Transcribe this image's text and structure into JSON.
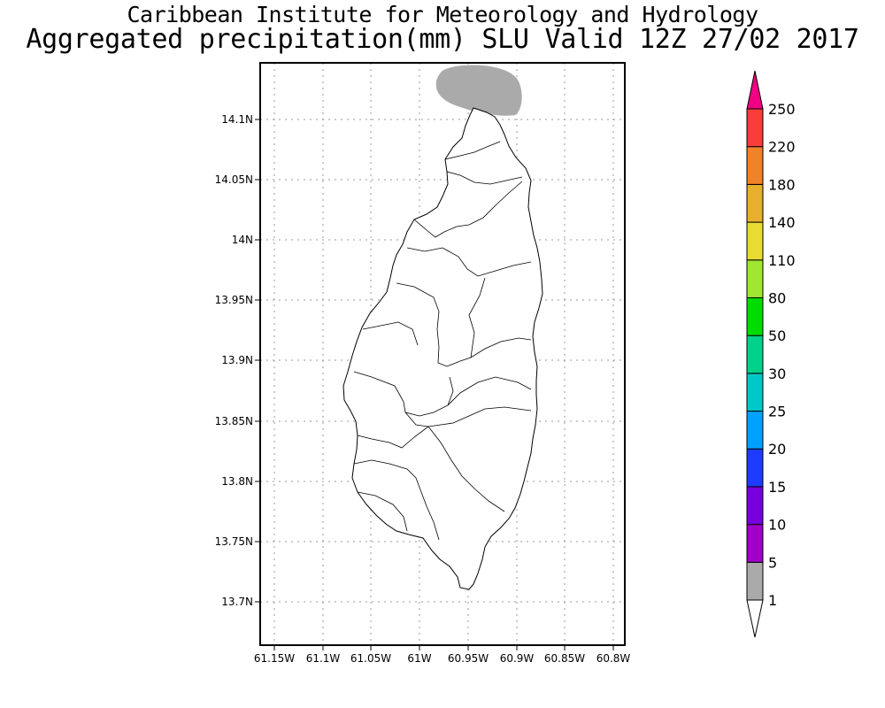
{
  "title": {
    "line1": "Caribbean Institute for Meteorology and Hydrology",
    "line2": "Aggregated precipitation(mm) SLU Valid 12Z 27/02 2017"
  },
  "map": {
    "x_ticks": [
      "61.15W",
      "61.1W",
      "61.05W",
      "61W",
      "60.95W",
      "60.9W",
      "60.85W",
      "60.8W"
    ],
    "y_ticks": [
      "14.1N",
      "14.05N",
      "14N",
      "13.95N",
      "13.9N",
      "13.85N",
      "13.8N",
      "13.75N",
      "13.7N"
    ],
    "precip_patch": {
      "category": "1-5",
      "color": "#aaaaaa"
    }
  },
  "colorbar": {
    "levels": [
      "1",
      "5",
      "10",
      "15",
      "20",
      "25",
      "30",
      "50",
      "80",
      "110",
      "140",
      "180",
      "220",
      "250"
    ],
    "colors": [
      "#ffffff",
      "#aaaaaa",
      "#a000c8",
      "#7800dc",
      "#1e3cff",
      "#00a0ff",
      "#00c8c8",
      "#00d28c",
      "#00dc00",
      "#a0e632",
      "#e6dc32",
      "#e6af2d",
      "#f08228",
      "#fa3c3c",
      "#f00082"
    ]
  },
  "chart_data": {
    "type": "heatmap",
    "title": "Caribbean Institute for Meteorology and Hydrology",
    "subtitle": "Aggregated precipitation(mm) SLU Valid 12Z 27/02 2017",
    "x_ticks": [
      "61.15W",
      "61.1W",
      "61.05W",
      "61W",
      "60.95W",
      "60.9W",
      "60.85W",
      "60.8W"
    ],
    "y_ticks": [
      "14.1N",
      "14.05N",
      "14N",
      "13.95N",
      "13.9N",
      "13.85N",
      "13.8N",
      "13.75N",
      "13.7N"
    ],
    "xlim": [
      -61.162,
      -60.795
    ],
    "ylim": [
      13.665,
      14.148
    ],
    "grid": true,
    "legend": "colorbar right",
    "levels": [
      1,
      5,
      10,
      15,
      20,
      25,
      30,
      50,
      80,
      110,
      140,
      180,
      220,
      250
    ],
    "features": [
      {
        "value_range": [
          1,
          5
        ],
        "lon_range": [
          -60.965,
          -60.879
        ],
        "lat_range": [
          14.102,
          14.147
        ]
      }
    ]
  }
}
